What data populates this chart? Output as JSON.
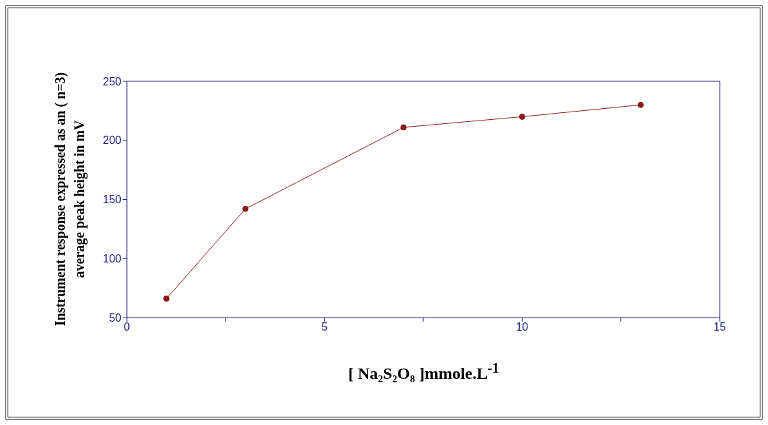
{
  "chart_data": {
    "type": "line",
    "xlabel": "[ Na₂S₂O₈ ]mmole.L$^{-1}$",
    "ylabel": "Instrument response expressed as an ( n=3) average peak height in mV",
    "x": [
      1,
      3,
      7,
      10,
      13
    ],
    "series": [
      {
        "color": "#8b1a1a",
        "values": [
          66,
          142,
          211,
          220,
          230
        ]
      }
    ],
    "xlim": [
      0,
      15
    ],
    "xticks": [
      0,
      {
        "value": 2.5,
        "label": null
      },
      5,
      {
        "value": 7.5,
        "label": null
      },
      10,
      {
        "value": 12.5,
        "label": null
      },
      15
    ],
    "ylim": [
      50,
      250
    ],
    "yticks": [
      50,
      100,
      150,
      200,
      250
    ],
    "grid": false,
    "legend": false,
    "marker": "circle",
    "line_style": "solid"
  }
}
